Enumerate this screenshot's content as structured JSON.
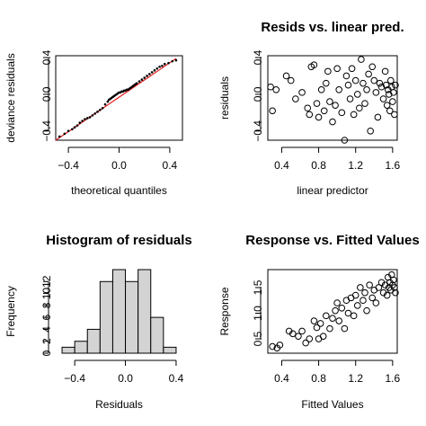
{
  "chart_data": [
    {
      "type": "scatter",
      "title": "",
      "xlabel": "theoretical quantiles",
      "ylabel": "deviance residuals",
      "xlim": [
        -0.5,
        0.5
      ],
      "ylim": [
        -0.5,
        0.42
      ],
      "xticks": [
        -0.4,
        0.0,
        0.4
      ],
      "yticks": [
        -0.4,
        0.0,
        0.4
      ],
      "xtick_labels": [
        "−0.4",
        "0.0",
        "0.4"
      ],
      "ytick_labels": [
        "−0.4",
        "0.0",
        "0.4"
      ],
      "reference_line": {
        "x": [
          -0.5,
          0.45
        ],
        "y": [
          -0.5,
          0.39
        ],
        "color": "#e41a1c"
      },
      "points_color": "#000000",
      "points": [
        [
          -0.47,
          -0.46
        ],
        [
          -0.43,
          -0.43
        ],
        [
          -0.4,
          -0.4
        ],
        [
          -0.37,
          -0.38
        ],
        [
          -0.35,
          -0.36
        ],
        [
          -0.33,
          -0.34
        ],
        [
          -0.31,
          -0.31
        ],
        [
          -0.29,
          -0.29
        ],
        [
          -0.27,
          -0.27
        ],
        [
          -0.25,
          -0.26
        ],
        [
          -0.23,
          -0.25
        ],
        [
          -0.21,
          -0.23
        ],
        [
          -0.19,
          -0.21
        ],
        [
          -0.17,
          -0.19
        ],
        [
          -0.15,
          -0.17
        ],
        [
          -0.13,
          -0.15
        ],
        [
          -0.11,
          -0.11
        ],
        [
          -0.09,
          -0.08
        ],
        [
          -0.08,
          -0.06
        ],
        [
          -0.07,
          -0.05
        ],
        [
          -0.06,
          -0.04
        ],
        [
          -0.05,
          -0.03
        ],
        [
          -0.04,
          -0.02
        ],
        [
          -0.03,
          -0.01
        ],
        [
          -0.02,
          0.0
        ],
        [
          -0.01,
          0.01
        ],
        [
          0.0,
          0.02
        ],
        [
          0.01,
          0.02
        ],
        [
          0.02,
          0.03
        ],
        [
          0.03,
          0.03
        ],
        [
          0.04,
          0.04
        ],
        [
          0.05,
          0.04
        ],
        [
          0.06,
          0.05
        ],
        [
          0.07,
          0.05
        ],
        [
          0.08,
          0.06
        ],
        [
          0.09,
          0.07
        ],
        [
          0.1,
          0.08
        ],
        [
          0.11,
          0.09
        ],
        [
          0.12,
          0.1
        ],
        [
          0.13,
          0.11
        ],
        [
          0.14,
          0.12
        ],
        [
          0.16,
          0.14
        ],
        [
          0.18,
          0.16
        ],
        [
          0.2,
          0.18
        ],
        [
          0.22,
          0.2
        ],
        [
          0.24,
          0.22
        ],
        [
          0.26,
          0.24
        ],
        [
          0.28,
          0.26
        ],
        [
          0.3,
          0.28
        ],
        [
          0.32,
          0.3
        ],
        [
          0.34,
          0.31
        ],
        [
          0.36,
          0.33
        ],
        [
          0.39,
          0.34
        ],
        [
          0.42,
          0.36
        ],
        [
          0.45,
          0.37
        ]
      ]
    },
    {
      "type": "scatter",
      "title": "Resids vs. linear pred.",
      "xlabel": "linear predictor",
      "ylabel": "residuals",
      "xlim": [
        0.25,
        1.65
      ],
      "ylim": [
        -0.5,
        0.42
      ],
      "xticks": [
        0.4,
        0.8,
        1.2,
        1.6
      ],
      "yticks": [
        -0.4,
        0.0,
        0.4
      ],
      "xtick_labels": [
        "0.4",
        "0.8",
        "1.2",
        "1.6"
      ],
      "ytick_labels": [
        "−0.4",
        "0.0",
        "0.4"
      ],
      "points": [
        [
          0.28,
          0.08
        ],
        [
          0.3,
          -0.18
        ],
        [
          0.34,
          0.05
        ],
        [
          0.45,
          0.2
        ],
        [
          0.5,
          0.15
        ],
        [
          0.55,
          -0.05
        ],
        [
          0.62,
          0.02
        ],
        [
          0.68,
          -0.15
        ],
        [
          0.7,
          -0.22
        ],
        [
          0.72,
          0.3
        ],
        [
          0.75,
          0.32
        ],
        [
          0.78,
          -0.1
        ],
        [
          0.8,
          -0.25
        ],
        [
          0.83,
          0.05
        ],
        [
          0.86,
          -0.18
        ],
        [
          0.88,
          0.12
        ],
        [
          0.9,
          0.25
        ],
        [
          0.92,
          -0.08
        ],
        [
          0.95,
          -0.3
        ],
        [
          0.98,
          -0.12
        ],
        [
          1.0,
          0.28
        ],
        [
          1.02,
          0.05
        ],
        [
          1.05,
          -0.2
        ],
        [
          1.08,
          -0.5
        ],
        [
          1.1,
          0.2
        ],
        [
          1.12,
          0.1
        ],
        [
          1.14,
          -0.05
        ],
        [
          1.16,
          0.28
        ],
        [
          1.18,
          -0.22
        ],
        [
          1.2,
          0.15
        ],
        [
          1.22,
          0.0
        ],
        [
          1.24,
          -0.15
        ],
        [
          1.26,
          0.38
        ],
        [
          1.28,
          0.12
        ],
        [
          1.3,
          -0.1
        ],
        [
          1.32,
          0.05
        ],
        [
          1.34,
          0.22
        ],
        [
          1.36,
          -0.4
        ],
        [
          1.38,
          0.3
        ],
        [
          1.4,
          0.15
        ],
        [
          1.42,
          0.02
        ],
        [
          1.44,
          -0.25
        ],
        [
          1.46,
          0.12
        ],
        [
          1.48,
          0.08
        ],
        [
          1.5,
          -0.05
        ],
        [
          1.52,
          0.25
        ],
        [
          1.53,
          0.1
        ],
        [
          1.54,
          -0.12
        ],
        [
          1.55,
          0.05
        ],
        [
          1.56,
          0.0
        ],
        [
          1.57,
          -0.18
        ],
        [
          1.58,
          0.15
        ],
        [
          1.59,
          0.08
        ],
        [
          1.6,
          -0.08
        ],
        [
          1.61,
          0.02
        ],
        [
          1.62,
          -0.22
        ],
        [
          1.63,
          0.1
        ]
      ]
    },
    {
      "type": "bar",
      "title": "Histogram of residuals",
      "xlabel": "Residuals",
      "ylabel": "Frequency",
      "xlim": [
        -0.55,
        0.45
      ],
      "ylim": [
        0,
        14
      ],
      "xticks": [
        -0.4,
        0.0,
        0.4
      ],
      "yticks": [
        0,
        2,
        4,
        6,
        8,
        10,
        12
      ],
      "xtick_labels": [
        "−0.4",
        "0.0",
        "0.4"
      ],
      "ytick_labels": [
        "0",
        "2",
        "4",
        "6",
        "8",
        "10",
        "12"
      ],
      "bar_color": "#d3d3d3",
      "bins": [
        -0.5,
        -0.4,
        -0.3,
        -0.2,
        -0.1,
        0.0,
        0.1,
        0.2,
        0.3
      ],
      "values": [
        1,
        2,
        4,
        12,
        14,
        12,
        14,
        6,
        1
      ]
    },
    {
      "type": "scatter",
      "title": "Response vs. Fitted Values",
      "xlabel": "Fitted Values",
      "ylabel": "Response",
      "xlim": [
        0.25,
        1.65
      ],
      "ylim": [
        0.22,
        1.85
      ],
      "xticks": [
        0.4,
        0.8,
        1.2,
        1.6
      ],
      "yticks": [
        0.5,
        1.0,
        1.5
      ],
      "xtick_labels": [
        "0.4",
        "0.8",
        "1.2",
        "1.6"
      ],
      "ytick_labels": [
        "0.5",
        "1.0",
        "1.5"
      ],
      "points": [
        [
          0.3,
          0.35
        ],
        [
          0.35,
          0.32
        ],
        [
          0.38,
          0.38
        ],
        [
          0.48,
          0.65
        ],
        [
          0.52,
          0.6
        ],
        [
          0.58,
          0.55
        ],
        [
          0.62,
          0.65
        ],
        [
          0.66,
          0.42
        ],
        [
          0.7,
          0.5
        ],
        [
          0.75,
          0.85
        ],
        [
          0.78,
          0.72
        ],
        [
          0.8,
          0.5
        ],
        [
          0.82,
          0.8
        ],
        [
          0.85,
          0.55
        ],
        [
          0.88,
          0.95
        ],
        [
          0.92,
          0.7
        ],
        [
          0.95,
          0.9
        ],
        [
          0.98,
          1.05
        ],
        [
          1.0,
          1.2
        ],
        [
          1.02,
          0.85
        ],
        [
          1.05,
          1.1
        ],
        [
          1.08,
          0.7
        ],
        [
          1.1,
          1.25
        ],
        [
          1.12,
          1.0
        ],
        [
          1.15,
          1.3
        ],
        [
          1.18,
          0.95
        ],
        [
          1.2,
          1.35
        ],
        [
          1.22,
          1.15
        ],
        [
          1.25,
          1.5
        ],
        [
          1.28,
          1.25
        ],
        [
          1.3,
          1.4
        ],
        [
          1.32,
          1.05
        ],
        [
          1.35,
          1.55
        ],
        [
          1.38,
          1.3
        ],
        [
          1.4,
          1.45
        ],
        [
          1.42,
          1.2
        ],
        [
          1.45,
          1.5
        ],
        [
          1.48,
          1.6
        ],
        [
          1.5,
          1.4
        ],
        [
          1.52,
          1.55
        ],
        [
          1.54,
          1.35
        ],
        [
          1.55,
          1.7
        ],
        [
          1.56,
          1.5
        ],
        [
          1.57,
          1.6
        ],
        [
          1.58,
          1.45
        ],
        [
          1.59,
          1.75
        ],
        [
          1.6,
          1.55
        ],
        [
          1.61,
          1.65
        ],
        [
          1.62,
          1.5
        ],
        [
          1.63,
          1.4
        ]
      ]
    }
  ]
}
